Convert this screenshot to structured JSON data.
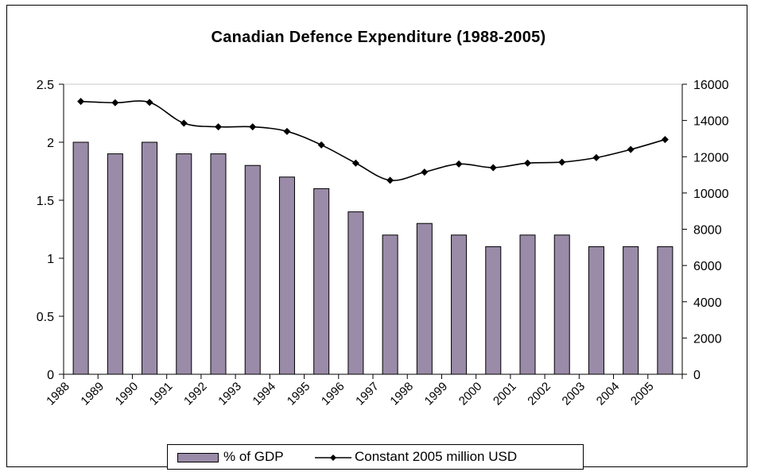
{
  "chart_data": {
    "type": "bar",
    "title": "Canadian Defence Expenditure (1988-2005)",
    "categories": [
      "1988",
      "1989",
      "1990",
      "1991",
      "1992",
      "1993",
      "1994",
      "1995",
      "1996",
      "1997",
      "1998",
      "1999",
      "2000",
      "2001",
      "2002",
      "2003",
      "2004",
      "2005"
    ],
    "series": [
      {
        "name": "% of GDP",
        "type": "bar",
        "axis": "left",
        "color": "#9a8ba8",
        "values": [
          2.0,
          1.9,
          2.0,
          1.9,
          1.9,
          1.8,
          1.7,
          1.6,
          1.4,
          1.2,
          1.3,
          1.2,
          1.1,
          1.2,
          1.2,
          1.1,
          1.1,
          1.1
        ]
      },
      {
        "name": "Constant 2005 million USD",
        "type": "line",
        "axis": "right",
        "color": "#000000",
        "marker": "diamond",
        "values": [
          15050,
          14980,
          15000,
          13850,
          13650,
          13650,
          13400,
          12650,
          11650,
          10700,
          11150,
          11600,
          11400,
          11650,
          11700,
          11950,
          12400,
          12950
        ]
      }
    ],
    "y_left": {
      "ylim": [
        0,
        2.5
      ],
      "ticks": [
        "0",
        "0.5",
        "1",
        "1.5",
        "2",
        "2.5"
      ]
    },
    "y_right": {
      "ylim": [
        0,
        16000
      ],
      "ticks": [
        "0",
        "2000",
        "4000",
        "6000",
        "8000",
        "10000",
        "12000",
        "14000",
        "16000"
      ]
    },
    "legend": {
      "position": "bottom",
      "items": [
        "% of GDP",
        "Constant 2005 million USD"
      ]
    },
    "grid": false
  }
}
